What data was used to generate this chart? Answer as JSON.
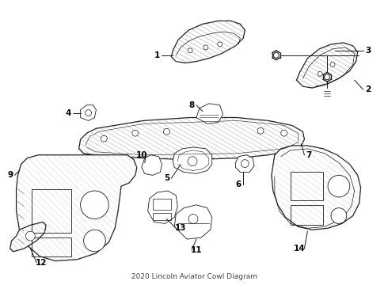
{
  "title": "2020 Lincoln Aviator Cowl Diagram",
  "background_color": "#ffffff",
  "line_color": "#1a1a1a",
  "text_color": "#000000",
  "fig_width": 4.9,
  "fig_height": 3.6,
  "dpi": 100,
  "label_fs": 7.5
}
